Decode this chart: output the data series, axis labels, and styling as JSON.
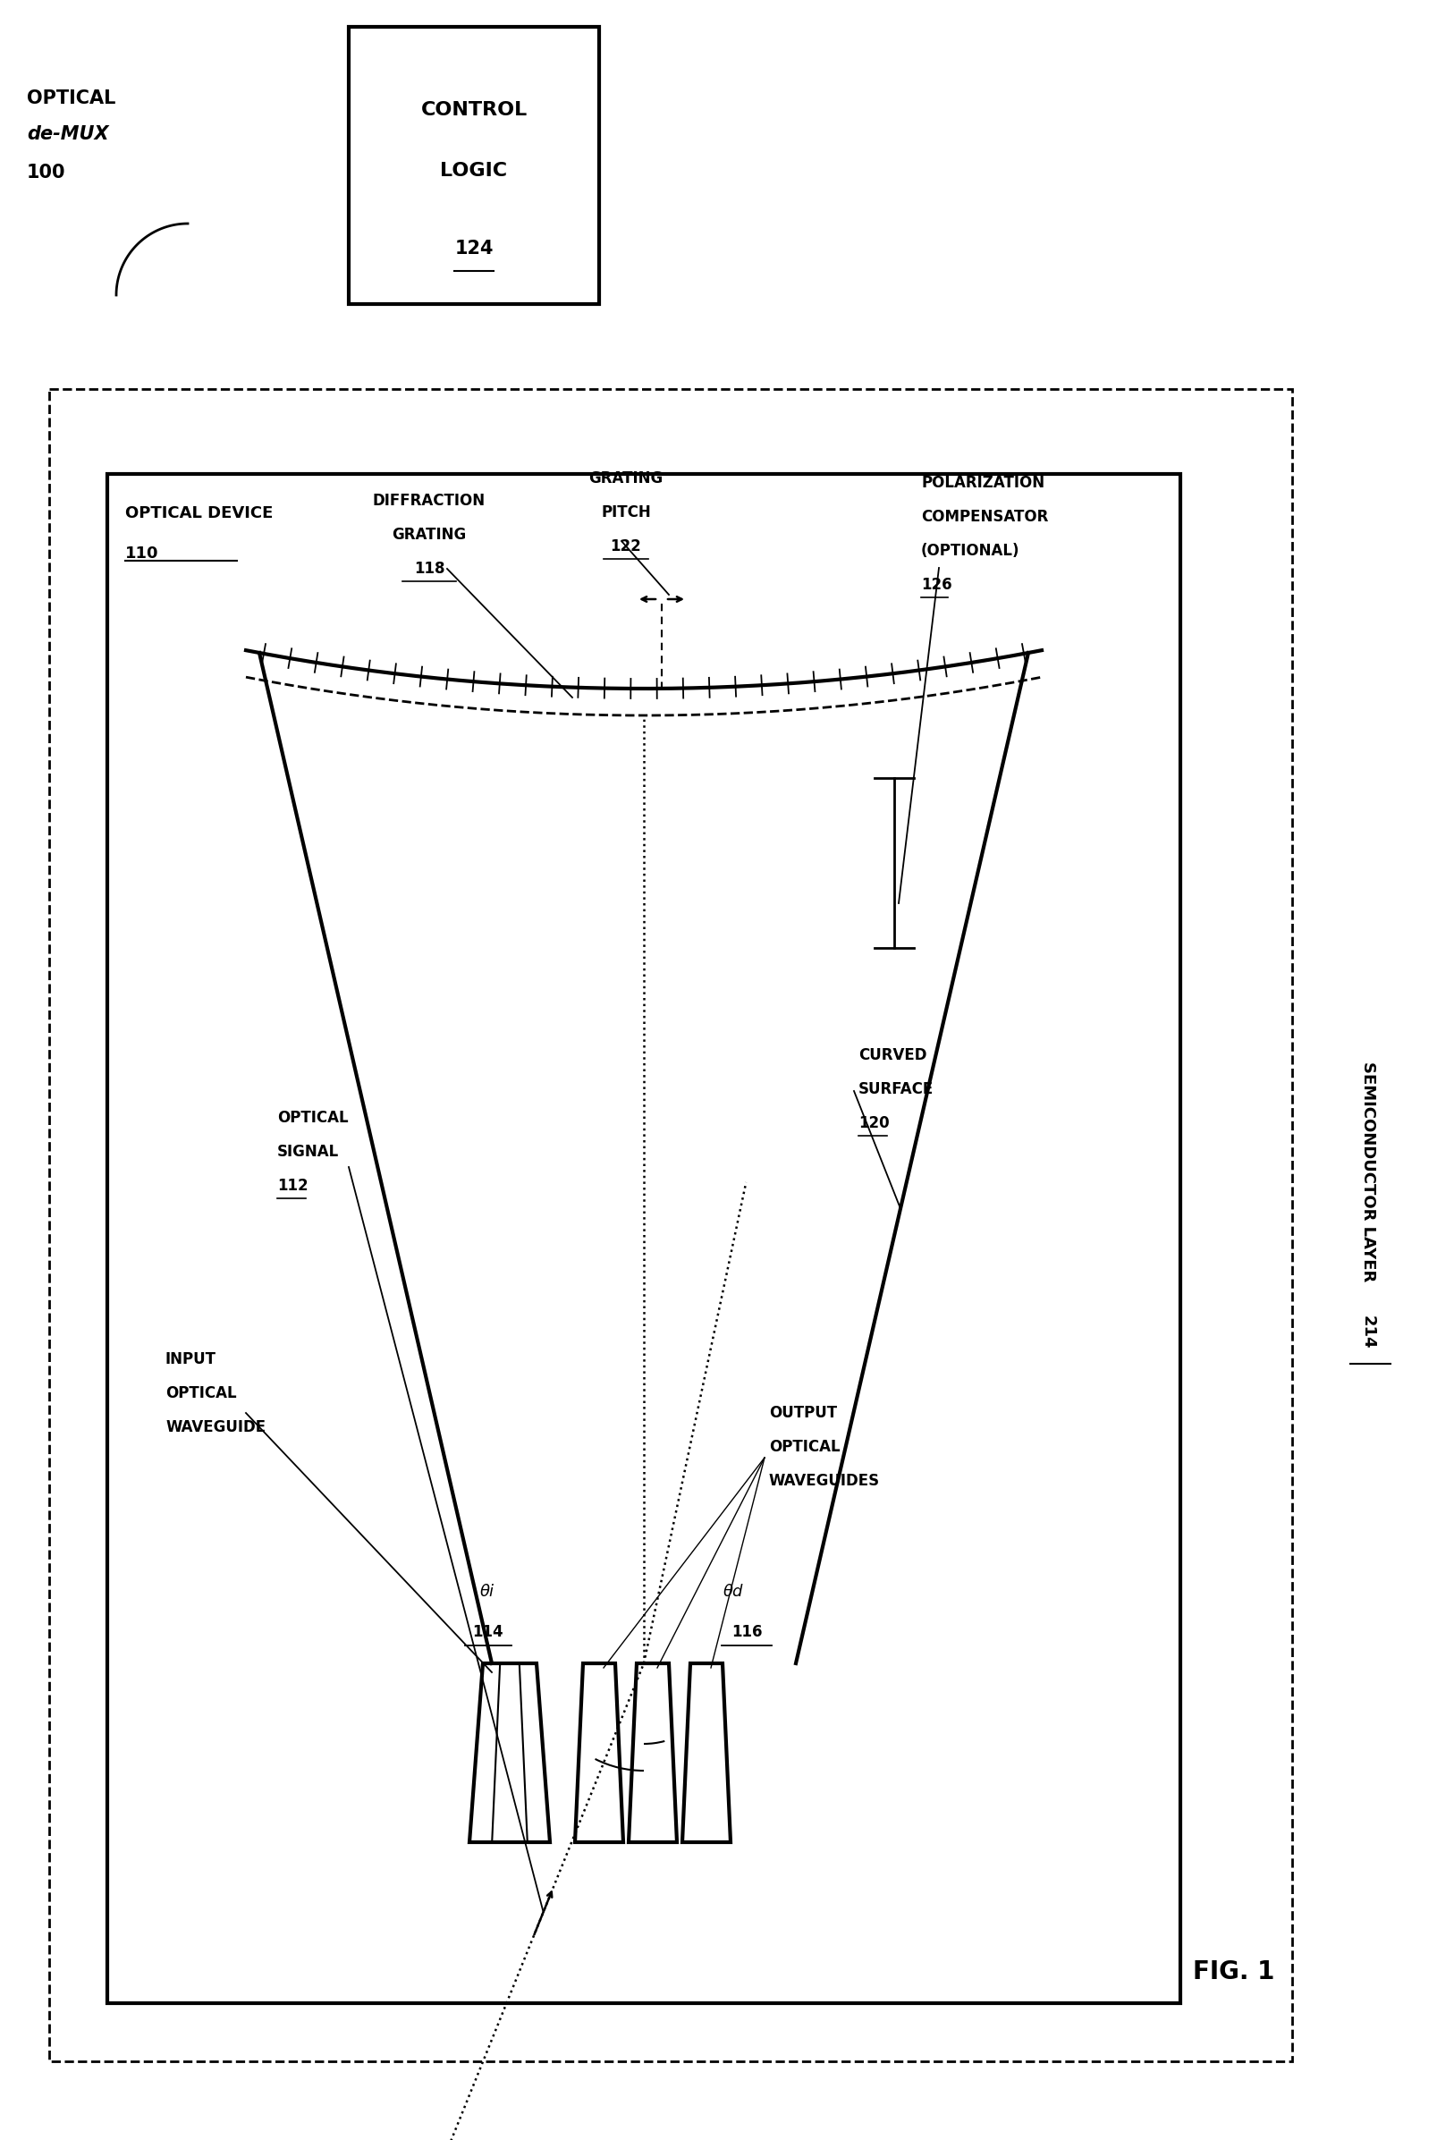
{
  "bg_color": "#ffffff",
  "fig_width": 16.07,
  "fig_height": 23.93,
  "title_label": "FIG. 1",
  "semiconductor_label": "SEMICONDUCTOR LAYER",
  "semiconductor_num": "214",
  "optical_demux_line1": "OPTICAL",
  "optical_demux_line2": "de-MUX",
  "optical_demux_num": "100",
  "control_logic_line1": "CONTROL",
  "control_logic_line2": "LOGIC",
  "control_logic_num": "124",
  "optical_device_label": "OPTICAL DEVICE",
  "optical_device_num": "110",
  "diffraction_grating_line1": "DIFFRACTION",
  "diffraction_grating_line2": "GRATING",
  "diffraction_grating_num": "118",
  "grating_pitch_line1": "GRATING",
  "grating_pitch_line2": "PITCH",
  "grating_pitch_num": "122",
  "polarization_line1": "POLARIZATION",
  "polarization_line2": "COMPENSATOR",
  "polarization_line3": "(OPTIONAL)",
  "polarization_num": "126",
  "curved_surface_line1": "CURVED",
  "curved_surface_line2": "SURFACE",
  "curved_surface_num": "120",
  "input_wg_line1": "INPUT",
  "input_wg_line2": "OPTICAL",
  "input_wg_line3": "WAVEGUIDE",
  "optical_signal_line1": "OPTICAL",
  "optical_signal_line2": "SIGNAL",
  "optical_signal_num": "112",
  "theta_i_label": "θi",
  "theta_i_num": "114",
  "theta_d_label": "θd",
  "theta_d_num": "116",
  "output_wg_line1": "OUTPUT",
  "output_wg_line2": "OPTICAL",
  "output_wg_line3": "WAVEGUIDES"
}
